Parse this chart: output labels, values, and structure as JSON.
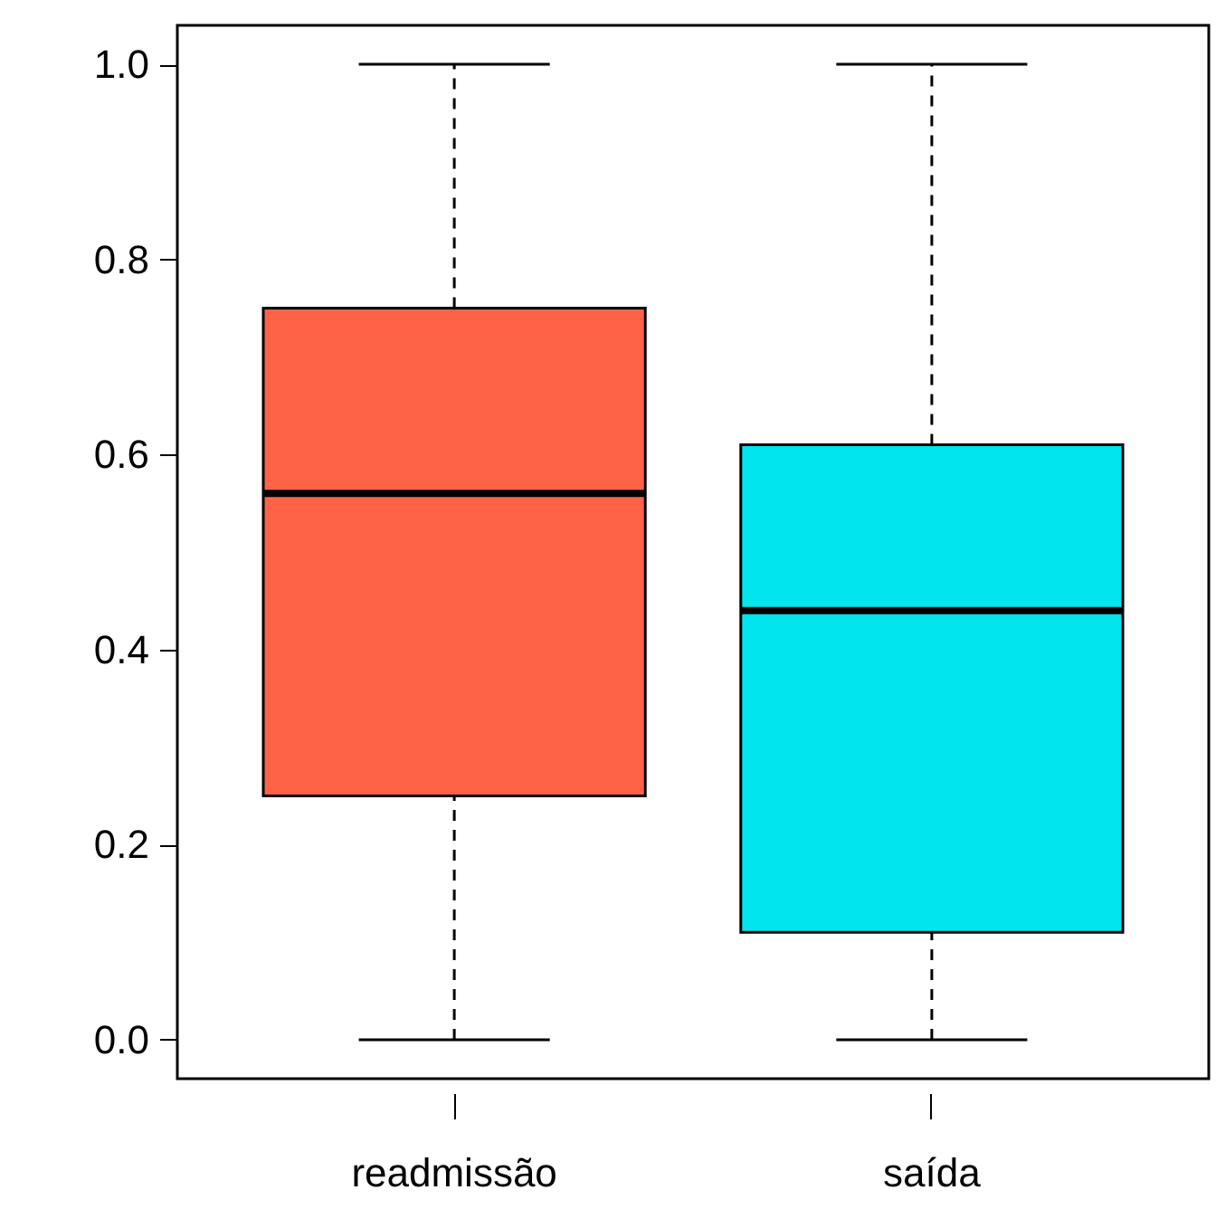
{
  "chart_data": {
    "type": "box",
    "categories": [
      "readmissão",
      "saída"
    ],
    "boxes": [
      {
        "low": 0.0,
        "q1": 0.25,
        "median": 0.56,
        "q3": 0.75,
        "high": 1.0
      },
      {
        "low": 0.0,
        "q1": 0.11,
        "median": 0.44,
        "q3": 0.61,
        "high": 1.0
      }
    ],
    "colors": [
      "#ff6347",
      "#00e5ee"
    ],
    "ylim": [
      -0.04,
      1.04
    ],
    "yticks": [
      {
        "value": 0,
        "label": "0.0"
      },
      {
        "value": 0.2,
        "label": "0.2"
      },
      {
        "value": 0.4,
        "label": "0.4"
      },
      {
        "value": 0.6,
        "label": "0.6"
      },
      {
        "value": 0.8,
        "label": "0.8"
      },
      {
        "value": 1,
        "label": "1.0"
      }
    ],
    "grid": false
  }
}
